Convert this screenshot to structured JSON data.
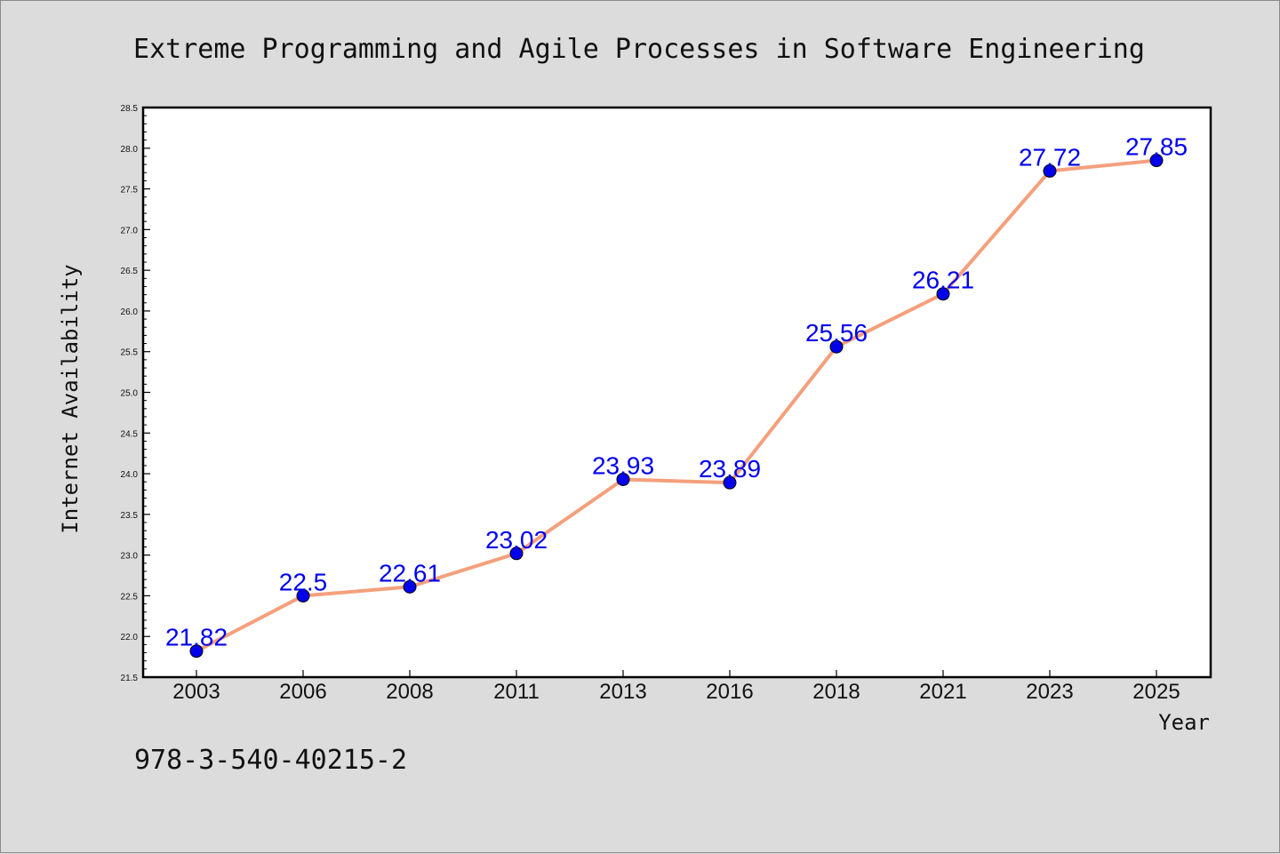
{
  "chart_data": {
    "type": "line",
    "title": "Extreme Programming and Agile Processes in Software Engineering",
    "xlabel": "Year",
    "ylabel": "Internet Availability",
    "categories": [
      "2003",
      "2006",
      "2008",
      "2011",
      "2013",
      "2016",
      "2018",
      "2021",
      "2023",
      "2025"
    ],
    "series": [
      {
        "values": [
          21.82,
          22.5,
          22.61,
          23.02,
          23.93,
          23.89,
          25.56,
          26.21,
          27.72,
          27.85
        ]
      }
    ],
    "data_labels": [
      "21.82",
      "22.5",
      "22.61",
      "23.02",
      "23.93",
      "23.89",
      "25.56",
      "26.21",
      "27.72",
      "27.85"
    ],
    "ylim": [
      21.5,
      28.5
    ],
    "yticks": [
      "21.5",
      "22.0",
      "22.5",
      "23.0",
      "23.5",
      "24.0",
      "24.5",
      "25.0",
      "25.5",
      "26.0",
      "26.5",
      "27.0",
      "27.5",
      "28.0",
      "28.5"
    ],
    "grid": false,
    "line_color": "#f4a07c",
    "marker_color": "#0000ee",
    "label_color": "#0000ee",
    "footer_text": "978-3-540-40215-2"
  }
}
